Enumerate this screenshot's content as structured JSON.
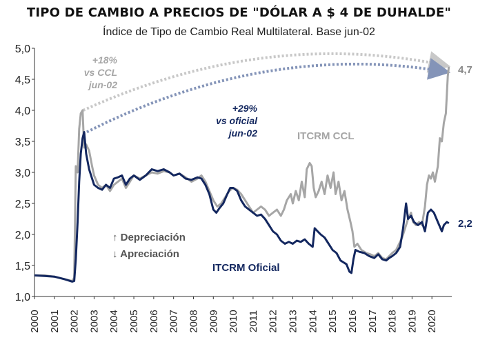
{
  "chart_data": {
    "type": "line",
    "title": "TIPO DE CAMBIO A PRECIOS DE \"DÓLAR A $ 4 DE DUHALDE\"",
    "subtitle": "Índice de Tipo de Cambio Real Multilateral. Base jun-02",
    "ylim": [
      1.0,
      5.0
    ],
    "yticks": [
      "1,0",
      "1,5",
      "2,0",
      "2,5",
      "3,0",
      "3,5",
      "4,0",
      "4,5",
      "5,0"
    ],
    "ytick_values": [
      1.0,
      1.5,
      2.0,
      2.5,
      3.0,
      3.5,
      4.0,
      4.5,
      5.0
    ],
    "xlim": [
      2000.0,
      2021.0
    ],
    "xticks": [
      "2000",
      "2001",
      "2002",
      "2003",
      "2004",
      "2005",
      "2006",
      "2007",
      "2008",
      "2009",
      "2010",
      "2011",
      "2012",
      "2013",
      "2014",
      "2015",
      "2016",
      "2017",
      "2018",
      "2019",
      "2020"
    ],
    "grid": false,
    "series": [
      {
        "name": "ITCRM CCL",
        "color": "#a6a6a6",
        "end_label": "4,7",
        "points": [
          [
            2000.0,
            1.34
          ],
          [
            2000.5,
            1.34
          ],
          [
            2001.0,
            1.32
          ],
          [
            2001.5,
            1.28
          ],
          [
            2001.9,
            1.25
          ],
          [
            2002.0,
            1.3
          ],
          [
            2002.08,
            3.1
          ],
          [
            2002.17,
            3.0
          ],
          [
            2002.25,
            3.7
          ],
          [
            2002.33,
            3.95
          ],
          [
            2002.42,
            4.0
          ],
          [
            2002.5,
            3.4
          ],
          [
            2002.6,
            3.45
          ],
          [
            2002.75,
            3.35
          ],
          [
            2002.9,
            3.1
          ],
          [
            2003.0,
            2.95
          ],
          [
            2003.2,
            2.8
          ],
          [
            2003.4,
            2.75
          ],
          [
            2003.6,
            2.8
          ],
          [
            2003.8,
            2.7
          ],
          [
            2004.0,
            2.8
          ],
          [
            2004.2,
            2.85
          ],
          [
            2004.4,
            2.9
          ],
          [
            2004.6,
            2.75
          ],
          [
            2004.8,
            2.85
          ],
          [
            2005.0,
            2.95
          ],
          [
            2005.3,
            2.9
          ],
          [
            2005.6,
            2.95
          ],
          [
            2005.9,
            3.0
          ],
          [
            2006.2,
            2.98
          ],
          [
            2006.5,
            3.02
          ],
          [
            2006.8,
            3.0
          ],
          [
            2007.0,
            2.95
          ],
          [
            2007.3,
            2.98
          ],
          [
            2007.6,
            2.92
          ],
          [
            2007.9,
            2.85
          ],
          [
            2008.2,
            2.9
          ],
          [
            2008.4,
            2.95
          ],
          [
            2008.6,
            2.85
          ],
          [
            2008.8,
            2.7
          ],
          [
            2009.0,
            2.55
          ],
          [
            2009.2,
            2.45
          ],
          [
            2009.4,
            2.5
          ],
          [
            2009.6,
            2.6
          ],
          [
            2009.8,
            2.7
          ],
          [
            2010.0,
            2.75
          ],
          [
            2010.2,
            2.72
          ],
          [
            2010.4,
            2.65
          ],
          [
            2010.6,
            2.55
          ],
          [
            2010.8,
            2.45
          ],
          [
            2011.0,
            2.35
          ],
          [
            2011.2,
            2.4
          ],
          [
            2011.4,
            2.45
          ],
          [
            2011.6,
            2.4
          ],
          [
            2011.8,
            2.3
          ],
          [
            2012.0,
            2.35
          ],
          [
            2012.2,
            2.4
          ],
          [
            2012.4,
            2.3
          ],
          [
            2012.55,
            2.4
          ],
          [
            2012.7,
            2.55
          ],
          [
            2012.9,
            2.65
          ],
          [
            2013.0,
            2.5
          ],
          [
            2013.15,
            2.7
          ],
          [
            2013.3,
            2.55
          ],
          [
            2013.45,
            2.85
          ],
          [
            2013.6,
            2.6
          ],
          [
            2013.7,
            3.05
          ],
          [
            2013.85,
            3.15
          ],
          [
            2013.95,
            3.1
          ],
          [
            2014.05,
            2.75
          ],
          [
            2014.15,
            2.6
          ],
          [
            2014.3,
            2.7
          ],
          [
            2014.45,
            2.85
          ],
          [
            2014.6,
            2.65
          ],
          [
            2014.75,
            2.95
          ],
          [
            2014.9,
            2.75
          ],
          [
            2015.05,
            3.0
          ],
          [
            2015.15,
            2.65
          ],
          [
            2015.3,
            2.85
          ],
          [
            2015.45,
            2.55
          ],
          [
            2015.6,
            2.7
          ],
          [
            2015.75,
            2.4
          ],
          [
            2015.9,
            2.2
          ],
          [
            2016.0,
            2.05
          ],
          [
            2016.1,
            1.8
          ],
          [
            2016.25,
            1.85
          ],
          [
            2016.45,
            1.75
          ],
          [
            2016.7,
            1.7
          ],
          [
            2016.9,
            1.68
          ],
          [
            2017.1,
            1.65
          ],
          [
            2017.3,
            1.7
          ],
          [
            2017.5,
            1.62
          ],
          [
            2017.7,
            1.6
          ],
          [
            2017.85,
            1.65
          ],
          [
            2018.0,
            1.7
          ],
          [
            2018.2,
            1.75
          ],
          [
            2018.35,
            1.85
          ],
          [
            2018.5,
            1.95
          ],
          [
            2018.65,
            2.1
          ],
          [
            2018.8,
            2.25
          ],
          [
            2018.95,
            2.35
          ],
          [
            2019.05,
            2.2
          ],
          [
            2019.2,
            2.15
          ],
          [
            2019.35,
            2.2
          ],
          [
            2019.5,
            2.15
          ],
          [
            2019.65,
            2.45
          ],
          [
            2019.75,
            2.8
          ],
          [
            2019.85,
            2.95
          ],
          [
            2019.95,
            2.9
          ],
          [
            2020.05,
            3.0
          ],
          [
            2020.15,
            2.85
          ],
          [
            2020.3,
            3.1
          ],
          [
            2020.4,
            3.55
          ],
          [
            2020.5,
            3.5
          ],
          [
            2020.6,
            3.8
          ],
          [
            2020.7,
            3.95
          ],
          [
            2020.8,
            4.55
          ],
          [
            2020.85,
            4.7
          ]
        ]
      },
      {
        "name": "ITCRM Oficial",
        "color": "#13275f",
        "end_label": "2,2",
        "points": [
          [
            2000.0,
            1.34
          ],
          [
            2000.5,
            1.33
          ],
          [
            2001.0,
            1.32
          ],
          [
            2001.5,
            1.28
          ],
          [
            2001.9,
            1.24
          ],
          [
            2002.0,
            1.25
          ],
          [
            2002.08,
            1.6
          ],
          [
            2002.17,
            2.2
          ],
          [
            2002.25,
            2.85
          ],
          [
            2002.33,
            3.3
          ],
          [
            2002.42,
            3.55
          ],
          [
            2002.5,
            3.65
          ],
          [
            2002.6,
            3.3
          ],
          [
            2002.75,
            3.05
          ],
          [
            2002.9,
            2.9
          ],
          [
            2003.0,
            2.8
          ],
          [
            2003.2,
            2.75
          ],
          [
            2003.4,
            2.72
          ],
          [
            2003.6,
            2.8
          ],
          [
            2003.8,
            2.75
          ],
          [
            2004.0,
            2.9
          ],
          [
            2004.2,
            2.92
          ],
          [
            2004.4,
            2.95
          ],
          [
            2004.6,
            2.8
          ],
          [
            2004.8,
            2.9
          ],
          [
            2005.0,
            2.95
          ],
          [
            2005.3,
            2.88
          ],
          [
            2005.6,
            2.95
          ],
          [
            2005.9,
            3.05
          ],
          [
            2006.2,
            3.02
          ],
          [
            2006.5,
            3.05
          ],
          [
            2006.8,
            3.0
          ],
          [
            2007.0,
            2.95
          ],
          [
            2007.3,
            2.98
          ],
          [
            2007.6,
            2.9
          ],
          [
            2007.9,
            2.88
          ],
          [
            2008.2,
            2.92
          ],
          [
            2008.4,
            2.9
          ],
          [
            2008.6,
            2.8
          ],
          [
            2008.8,
            2.65
          ],
          [
            2009.0,
            2.4
          ],
          [
            2009.15,
            2.35
          ],
          [
            2009.3,
            2.42
          ],
          [
            2009.5,
            2.5
          ],
          [
            2009.7,
            2.65
          ],
          [
            2009.85,
            2.75
          ],
          [
            2010.0,
            2.75
          ],
          [
            2010.2,
            2.7
          ],
          [
            2010.4,
            2.55
          ],
          [
            2010.6,
            2.45
          ],
          [
            2010.8,
            2.4
          ],
          [
            2011.0,
            2.35
          ],
          [
            2011.2,
            2.3
          ],
          [
            2011.4,
            2.32
          ],
          [
            2011.6,
            2.25
          ],
          [
            2011.8,
            2.15
          ],
          [
            2012.0,
            2.05
          ],
          [
            2012.2,
            2.0
          ],
          [
            2012.4,
            1.9
          ],
          [
            2012.6,
            1.85
          ],
          [
            2012.8,
            1.88
          ],
          [
            2013.0,
            1.85
          ],
          [
            2013.2,
            1.9
          ],
          [
            2013.4,
            1.88
          ],
          [
            2013.6,
            1.92
          ],
          [
            2013.8,
            1.85
          ],
          [
            2014.0,
            1.8
          ],
          [
            2014.1,
            2.1
          ],
          [
            2014.25,
            2.05
          ],
          [
            2014.4,
            2.0
          ],
          [
            2014.6,
            1.95
          ],
          [
            2014.8,
            1.85
          ],
          [
            2015.0,
            1.75
          ],
          [
            2015.2,
            1.7
          ],
          [
            2015.4,
            1.58
          ],
          [
            2015.55,
            1.55
          ],
          [
            2015.7,
            1.52
          ],
          [
            2015.85,
            1.4
          ],
          [
            2015.95,
            1.38
          ],
          [
            2016.05,
            1.6
          ],
          [
            2016.15,
            1.75
          ],
          [
            2016.35,
            1.72
          ],
          [
            2016.6,
            1.7
          ],
          [
            2016.85,
            1.65
          ],
          [
            2017.1,
            1.62
          ],
          [
            2017.3,
            1.68
          ],
          [
            2017.5,
            1.6
          ],
          [
            2017.7,
            1.58
          ],
          [
            2017.85,
            1.62
          ],
          [
            2018.0,
            1.65
          ],
          [
            2018.2,
            1.7
          ],
          [
            2018.4,
            1.8
          ],
          [
            2018.55,
            2.1
          ],
          [
            2018.7,
            2.5
          ],
          [
            2018.8,
            2.25
          ],
          [
            2018.95,
            2.3
          ],
          [
            2019.1,
            2.2
          ],
          [
            2019.3,
            2.15
          ],
          [
            2019.5,
            2.2
          ],
          [
            2019.65,
            2.05
          ],
          [
            2019.8,
            2.35
          ],
          [
            2019.95,
            2.4
          ],
          [
            2020.1,
            2.35
          ],
          [
            2020.3,
            2.2
          ],
          [
            2020.5,
            2.05
          ],
          [
            2020.6,
            2.15
          ],
          [
            2020.75,
            2.2
          ],
          [
            2020.85,
            2.18
          ]
        ]
      }
    ],
    "annotations": [
      {
        "lines": [
          "+18%",
          "vs CCL",
          "jun-02"
        ],
        "color": "#a6a6a6"
      },
      {
        "lines": [
          "+29%",
          "vs oficial",
          "jun-02"
        ],
        "color": "#13275f"
      }
    ],
    "dotted_arrows": [
      {
        "from": [
          2002.45,
          4.0
        ],
        "to": [
          2020.72,
          4.72
        ],
        "color": "#c8c8c8"
      },
      {
        "from": [
          2002.45,
          3.62
        ],
        "to": [
          2020.72,
          4.62
        ],
        "color": "#8494b8"
      }
    ],
    "labels": {
      "ccl": "ITCRM CCL",
      "oficial": "ITCRM Oficial",
      "dep": "↑ Depreciación",
      "apr": "↓ Apreciación"
    }
  }
}
